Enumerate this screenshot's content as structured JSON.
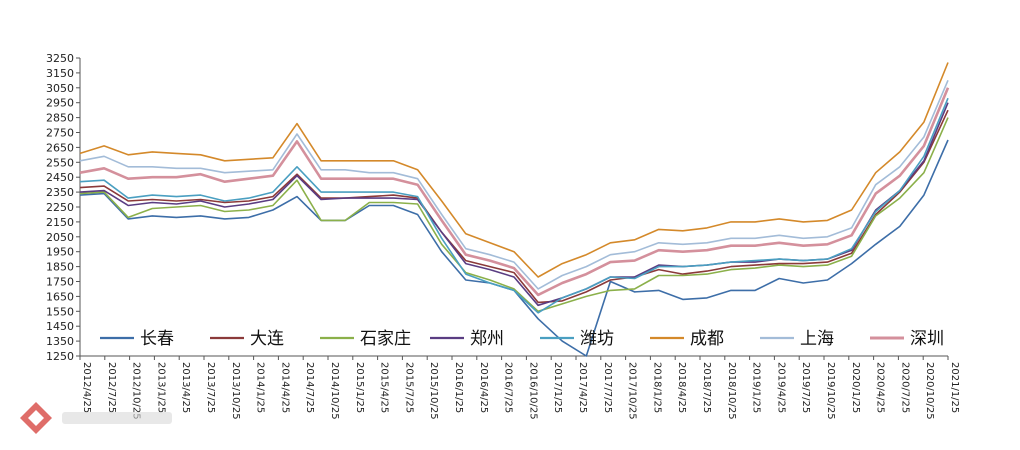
{
  "chart_data": {
    "type": "line",
    "title": "",
    "xlabel": "",
    "ylabel": "",
    "ylim": [
      1250,
      3250
    ],
    "y_ticks": [
      1250,
      1350,
      1450,
      1550,
      1650,
      1750,
      1850,
      1950,
      2050,
      2150,
      2250,
      2350,
      2450,
      2550,
      2650,
      2750,
      2850,
      2950,
      3050,
      3150,
      3250
    ],
    "x_tick_labels": [
      "2012/4/25",
      "2012/7/25",
      "2012/10/25",
      "2013/1/25",
      "2013/4/25",
      "2013/7/25",
      "2013/10/25",
      "2014/1/25",
      "2014/4/25",
      "2014/7/25",
      "2014/10/25",
      "2015/1/25",
      "2015/4/25",
      "2015/7/25",
      "2015/10/25",
      "2016/1/25",
      "2016/4/25",
      "2016/7/25",
      "2016/10/25",
      "2017/1/25",
      "2017/4/25",
      "2017/7/25",
      "2017/10/25",
      "2018/1/25",
      "2018/4/25",
      "2018/7/25",
      "2018/10/25",
      "2019/1/25",
      "2019/4/25",
      "2019/7/25",
      "2019/10/25",
      "2020/1/25",
      "2020/4/25",
      "2020/7/25",
      "2020/10/25",
      "2021/1/25"
    ],
    "grid": false,
    "legend_position": "bottom-inside",
    "series": [
      {
        "name": "长春",
        "color": "#3d6ea8",
        "values": [
          2330,
          2340,
          2170,
          2190,
          2180,
          2190,
          2170,
          2180,
          2230,
          2320,
          2160,
          2160,
          2260,
          2260,
          2200,
          1950,
          1760,
          1740,
          1690,
          1500,
          1350,
          1250,
          1750,
          1680,
          1690,
          1630,
          1640,
          1690,
          1690,
          1770,
          1740,
          1760,
          1870,
          2000,
          2120,
          2330,
          2700
        ]
      },
      {
        "name": "大连",
        "color": "#8b3a3a",
        "values": [
          2380,
          2390,
          2290,
          2300,
          2290,
          2300,
          2280,
          2290,
          2320,
          2470,
          2310,
          2310,
          2320,
          2330,
          2310,
          2080,
          1890,
          1850,
          1810,
          1610,
          1620,
          1680,
          1760,
          1780,
          1830,
          1800,
          1820,
          1850,
          1860,
          1870,
          1870,
          1880,
          1940,
          2200,
          2350,
          2550,
          2900
        ]
      },
      {
        "name": "石家庄",
        "color": "#8bb04a",
        "values": [
          2340,
          2350,
          2180,
          2240,
          2250,
          2260,
          2220,
          2230,
          2260,
          2430,
          2160,
          2160,
          2280,
          2280,
          2270,
          2000,
          1810,
          1760,
          1700,
          1550,
          1600,
          1650,
          1690,
          1700,
          1790,
          1790,
          1800,
          1830,
          1840,
          1860,
          1850,
          1860,
          1920,
          2190,
          2310,
          2480,
          2850
        ]
      },
      {
        "name": "郑州",
        "color": "#5a3d82",
        "values": [
          2350,
          2360,
          2260,
          2280,
          2270,
          2290,
          2250,
          2270,
          2300,
          2460,
          2300,
          2310,
          2310,
          2310,
          2300,
          2080,
          1870,
          1830,
          1780,
          1590,
          1640,
          1700,
          1780,
          1780,
          1860,
          1850,
          1860,
          1880,
          1880,
          1900,
          1890,
          1900,
          1960,
          2230,
          2360,
          2560,
          2950
        ]
      },
      {
        "name": "潍坊",
        "color": "#4a9fc1",
        "values": [
          2420,
          2430,
          2310,
          2330,
          2320,
          2330,
          2290,
          2310,
          2350,
          2520,
          2350,
          2350,
          2350,
          2350,
          2320,
          2040,
          1800,
          1740,
          1690,
          1540,
          1640,
          1700,
          1780,
          1770,
          1850,
          1850,
          1860,
          1880,
          1890,
          1900,
          1890,
          1900,
          1970,
          2220,
          2360,
          2590,
          2980
        ]
      },
      {
        "name": "成都",
        "color": "#d4892a",
        "values": [
          2610,
          2660,
          2600,
          2620,
          2610,
          2600,
          2560,
          2570,
          2580,
          2810,
          2560,
          2560,
          2560,
          2560,
          2500,
          2290,
          2070,
          2010,
          1950,
          1780,
          1870,
          1930,
          2010,
          2030,
          2100,
          2090,
          2110,
          2150,
          2150,
          2170,
          2150,
          2160,
          2230,
          2480,
          2620,
          2820,
          3220
        ]
      },
      {
        "name": "上海",
        "color": "#a3bcd8",
        "values": [
          2560,
          2590,
          2520,
          2520,
          2510,
          2510,
          2480,
          2490,
          2500,
          2740,
          2500,
          2500,
          2480,
          2480,
          2440,
          2200,
          1970,
          1930,
          1880,
          1700,
          1790,
          1850,
          1930,
          1950,
          2010,
          2000,
          2010,
          2040,
          2040,
          2060,
          2040,
          2050,
          2110,
          2400,
          2520,
          2720,
          3100
        ]
      },
      {
        "name": "深圳",
        "color": "#d4909c",
        "values": [
          2480,
          2510,
          2440,
          2450,
          2450,
          2470,
          2420,
          2440,
          2460,
          2690,
          2440,
          2440,
          2440,
          2440,
          2400,
          2160,
          1930,
          1890,
          1840,
          1660,
          1740,
          1800,
          1880,
          1890,
          1960,
          1950,
          1960,
          1990,
          1990,
          2010,
          1990,
          2000,
          2060,
          2340,
          2460,
          2660,
          3050
        ]
      }
    ]
  }
}
